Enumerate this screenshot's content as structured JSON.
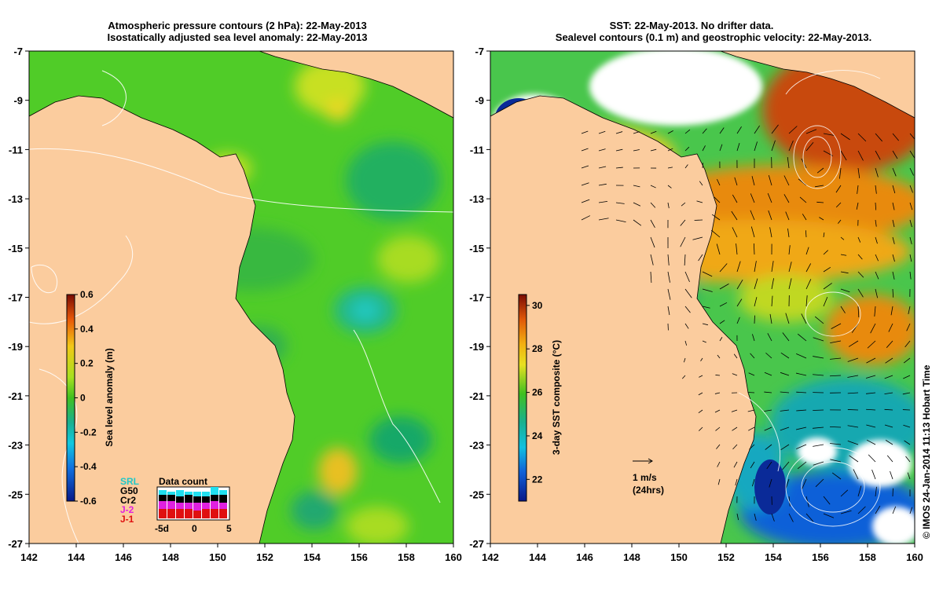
{
  "left_panel": {
    "title_line1": "Atmospheric pressure contours (2 hPa): 22-May-2013",
    "title_line2": "Isostatically adjusted sea level anomaly: 22-May-2013",
    "colorbar": {
      "label": "Sea level anomaly (m)",
      "ticks": [
        "0.6",
        "0.4",
        "0.2",
        "0",
        "-0.2",
        "-0.4",
        "-0.6"
      ],
      "range": [
        -0.6,
        0.6
      ]
    },
    "satellites": [
      {
        "name": "SRL",
        "color": "#20c8c8"
      },
      {
        "name": "G50",
        "color": "#000000"
      },
      {
        "name": "Cr2",
        "color": "#000000"
      },
      {
        "name": "J-2",
        "color": "#e020e0"
      },
      {
        "name": "J-1",
        "color": "#e01010"
      }
    ],
    "data_count": {
      "title": "Data count",
      "tick_labels": [
        "-5d",
        "0",
        "5"
      ],
      "columns": [
        {
          "red": 0.3,
          "magenta": 0.25,
          "black": 0.2,
          "cyan": 0.15
        },
        {
          "red": 0.3,
          "magenta": 0.25,
          "black": 0.2,
          "cyan": 0.1
        },
        {
          "red": 0.3,
          "magenta": 0.2,
          "black": 0.2,
          "cyan": 0.2
        },
        {
          "red": 0.3,
          "magenta": 0.2,
          "black": 0.25,
          "cyan": 0.1
        },
        {
          "red": 0.25,
          "magenta": 0.25,
          "black": 0.2,
          "cyan": 0.15
        },
        {
          "red": 0.3,
          "magenta": 0.2,
          "black": 0.2,
          "cyan": 0.15
        },
        {
          "red": 0.3,
          "magenta": 0.25,
          "black": 0.2,
          "cyan": 0.25
        },
        {
          "red": 0.3,
          "magenta": 0.2,
          "black": 0.25,
          "cyan": 0.15
        }
      ]
    }
  },
  "right_panel": {
    "title_line1": "SST: 22-May-2013. No drifter data.",
    "title_line2": "Sealevel contours (0.1 m) and geostrophic velocity: 22-May-2013.",
    "colorbar": {
      "label": "3-day SST composite (°C)",
      "ticks": [
        "30",
        "28",
        "26",
        "24",
        "22"
      ],
      "range": [
        21,
        30.5
      ]
    },
    "velocity_legend": {
      "line1": "1 m/s",
      "line2": "(24hrs)"
    }
  },
  "axes": {
    "lon_ticks": [
      "142",
      "144",
      "146",
      "148",
      "150",
      "152",
      "154",
      "156",
      "158",
      "160"
    ],
    "lat_ticks": [
      "-7",
      "-9",
      "-11",
      "-13",
      "-15",
      "-17",
      "-19",
      "-21",
      "-23",
      "-25",
      "-27"
    ],
    "lon_range": [
      142,
      160
    ],
    "lat_range": [
      -27,
      -7
    ]
  },
  "credit": "© IMOS 24-Jan-2014 11:13 Hobart Time",
  "colors": {
    "land": "#fbcc9e",
    "sla_base": "#50cc28",
    "sst_base": "#49c64c",
    "sst_warm": "#e88a10",
    "sst_hot": "#c84a08",
    "sst_cold": "#1060d8",
    "cloud": "#ffffff"
  }
}
